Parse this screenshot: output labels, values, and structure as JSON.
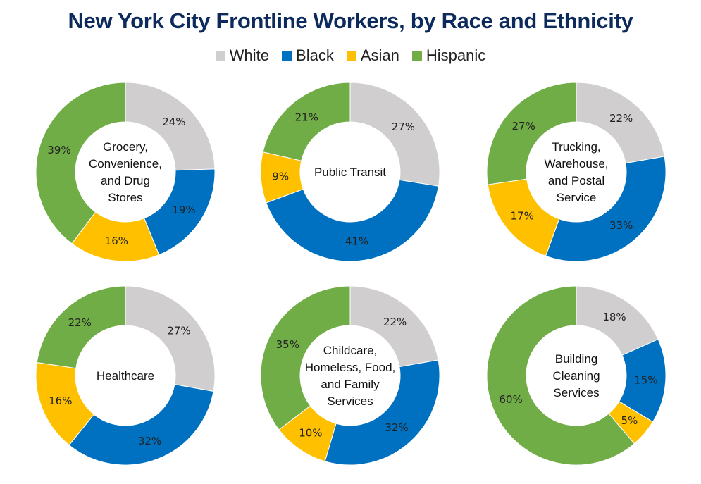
{
  "chart_data": {
    "type": "donut",
    "title": "New York City Frontline Workers, by Race and Ethnicity",
    "legend": [
      "White",
      "Black",
      "Asian",
      "Hispanic"
    ],
    "colors": {
      "White": "#d0cece",
      "Black": "#0070c0",
      "Asian": "#ffc000",
      "Hispanic": "#70ad47"
    },
    "charts": [
      {
        "name": "Grocery, Convenience, and Drug Stores",
        "center_lines": [
          "Grocery,",
          "Convenience,",
          "and Drug",
          "Stores"
        ],
        "values": [
          24,
          19,
          16,
          39
        ]
      },
      {
        "name": "Public Transit",
        "center_lines": [
          "Public Transit"
        ],
        "values": [
          27,
          41,
          9,
          21
        ]
      },
      {
        "name": "Trucking, Warehouse, and Postal Service",
        "center_lines": [
          "Trucking,",
          "Warehouse,",
          "and Postal",
          "Service"
        ],
        "values": [
          22,
          33,
          17,
          27
        ]
      },
      {
        "name": "Healthcare",
        "center_lines": [
          "Healthcare"
        ],
        "values": [
          27,
          32,
          16,
          22
        ]
      },
      {
        "name": "Childcare, Homeless, Food, and Family Services",
        "center_lines": [
          "Childcare,",
          "Homeless, Food,",
          "and Family",
          "Services"
        ],
        "values": [
          22,
          32,
          10,
          35
        ]
      },
      {
        "name": "Building Cleaning Services",
        "center_lines": [
          "Building",
          "Cleaning",
          "Services"
        ],
        "values": [
          18,
          15,
          5,
          60
        ]
      }
    ]
  }
}
